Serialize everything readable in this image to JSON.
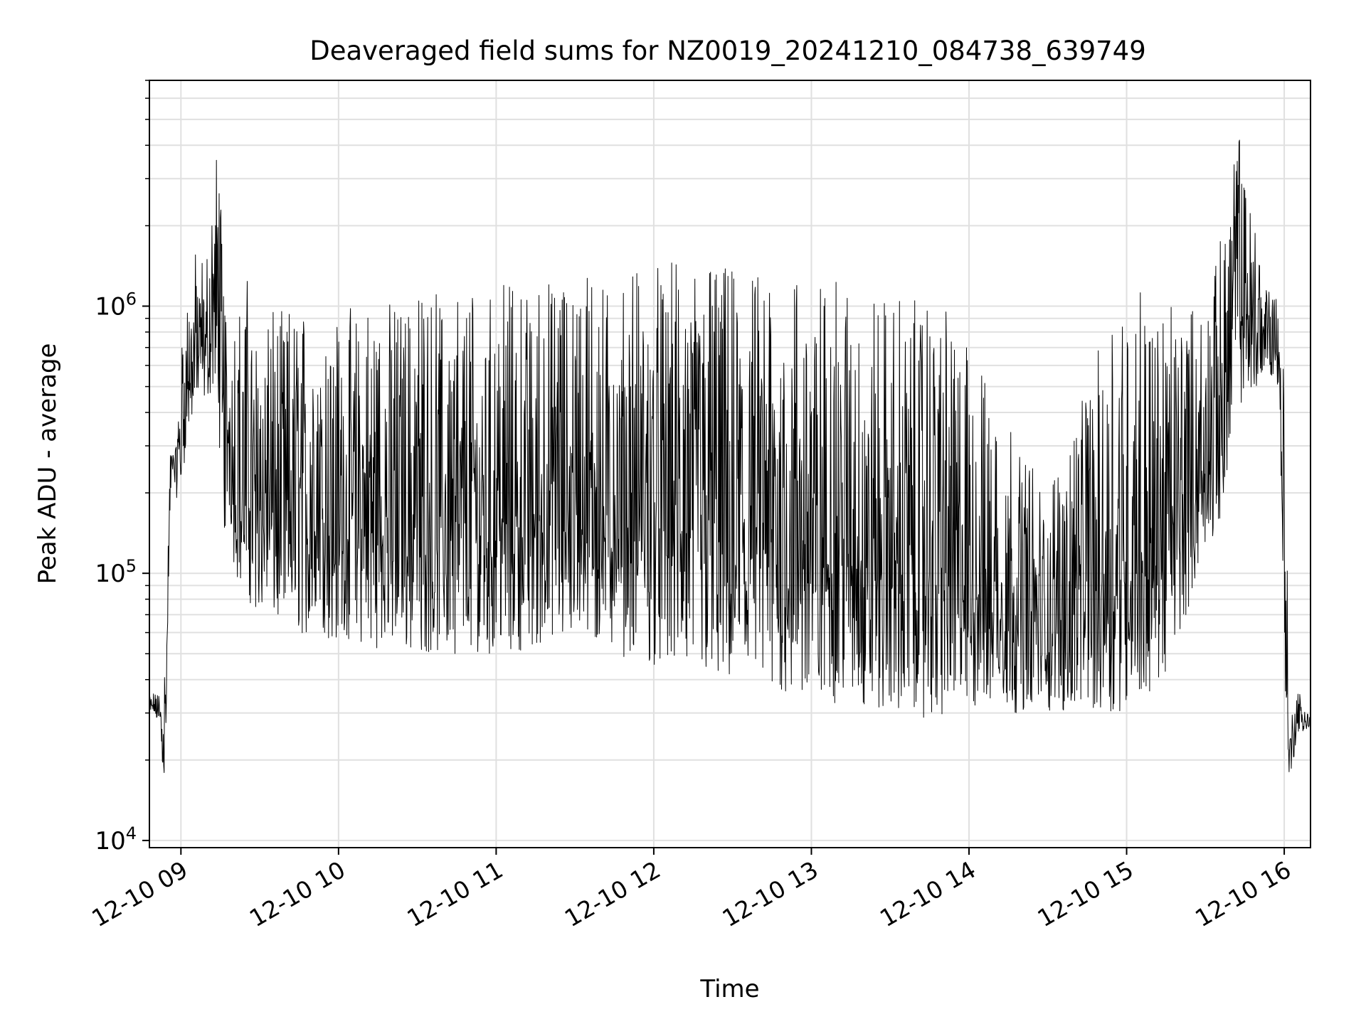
{
  "chart_data": {
    "type": "line",
    "title": "Deaveraged field sums for NZ0019_20241210_084738_639749",
    "xlabel": "Time",
    "ylabel": "Peak ADU - average",
    "y_scale": "log",
    "grid": true,
    "line_color": "#000000",
    "grid_color": "#e0e0e0",
    "xlim": [
      "2024-12-10 08:48",
      "2024-12-10 16:10"
    ],
    "ylim": [
      9400,
      7000000
    ],
    "x_ticks": [
      {
        "value": "2024-12-10 09:00",
        "label": "12-10 09"
      },
      {
        "value": "2024-12-10 10:00",
        "label": "12-10 10"
      },
      {
        "value": "2024-12-10 11:00",
        "label": "12-10 11"
      },
      {
        "value": "2024-12-10 12:00",
        "label": "12-10 12"
      },
      {
        "value": "2024-12-10 13:00",
        "label": "12-10 13"
      },
      {
        "value": "2024-12-10 14:00",
        "label": "12-10 14"
      },
      {
        "value": "2024-12-10 15:00",
        "label": "12-10 15"
      },
      {
        "value": "2024-12-10 16:00",
        "label": "12-10 16"
      }
    ],
    "y_ticks": [
      {
        "value": 10000,
        "base": "10",
        "exp": "4"
      },
      {
        "value": 100000,
        "base": "10",
        "exp": "5"
      },
      {
        "value": 1000000,
        "base": "10",
        "exp": "6"
      }
    ],
    "series": [
      {
        "x": [
          "2024-12-10 08:48",
          "2024-12-10 08:50",
          "2024-12-10 08:52",
          "2024-12-10 08:54",
          "2024-12-10 08:55",
          "2024-12-10 08:56",
          "2024-12-10 08:57",
          "2024-12-10 08:58",
          "2024-12-10 09:00",
          "2024-12-10 09:02",
          "2024-12-10 09:05",
          "2024-12-10 09:10",
          "2024-12-10 09:14",
          "2024-12-10 09:16",
          "2024-12-10 09:18",
          "2024-12-10 09:20",
          "2024-12-10 09:25",
          "2024-12-10 09:30",
          "2024-12-10 09:40",
          "2024-12-10 10:00",
          "2024-12-10 10:30",
          "2024-12-10 11:00",
          "2024-12-10 11:30",
          "2024-12-10 12:00",
          "2024-12-10 12:20",
          "2024-12-10 12:30",
          "2024-12-10 13:00",
          "2024-12-10 13:30",
          "2024-12-10 13:50",
          "2024-12-10 14:00",
          "2024-12-10 14:30",
          "2024-12-10 14:55",
          "2024-12-10 15:05",
          "2024-12-10 15:15",
          "2024-12-10 15:30",
          "2024-12-10 15:35",
          "2024-12-10 15:42",
          "2024-12-10 15:45",
          "2024-12-10 15:50",
          "2024-12-10 15:55",
          "2024-12-10 15:58",
          "2024-12-10 16:00",
          "2024-12-10 16:02",
          "2024-12-10 16:05",
          "2024-12-10 16:10"
        ],
        "low": [
          28000,
          30000,
          25000,
          15000,
          60000,
          180000,
          250000,
          190000,
          200000,
          300000,
          400000,
          450000,
          500000,
          110000,
          200000,
          100000,
          80000,
          70000,
          60000,
          55000,
          50000,
          50000,
          55000,
          45000,
          40000,
          35000,
          33000,
          30000,
          28000,
          30000,
          30000,
          30000,
          32000,
          40000,
          120000,
          150000,
          400000,
          450000,
          500000,
          550000,
          500000,
          45000,
          15000,
          25000,
          26000
        ],
        "high": [
          38000,
          35000,
          38000,
          50000,
          120000,
          300000,
          360000,
          350000,
          700000,
          1200000,
          1600000,
          1600000,
          5000000,
          1800000,
          900000,
          900000,
          1300000,
          900000,
          1000000,
          1000000,
          1100000,
          1200000,
          1300000,
          1450000,
          1500000,
          1400000,
          1300000,
          1100000,
          1000000,
          700000,
          200000,
          1000000,
          1200000,
          1000000,
          1000000,
          1600000,
          5800000,
          3000000,
          2000000,
          1200000,
          1100000,
          800000,
          30000,
          37000,
          30000
        ]
      }
    ]
  }
}
